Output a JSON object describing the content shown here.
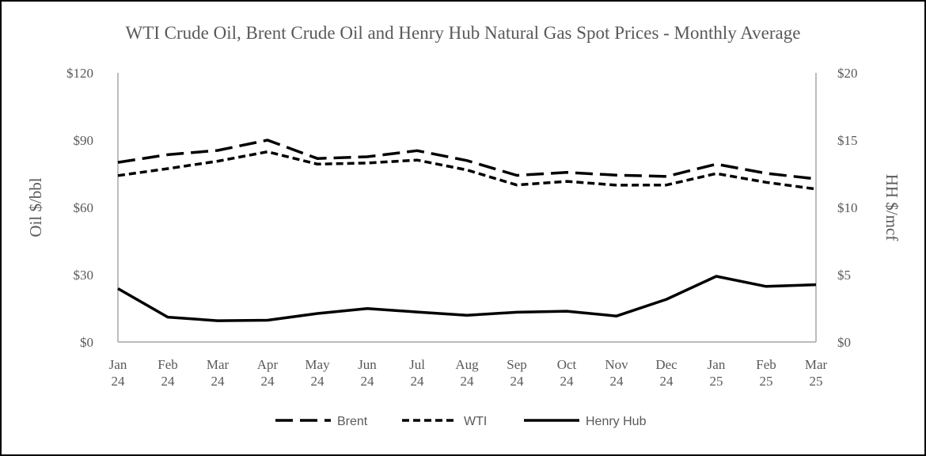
{
  "chart_data": {
    "type": "line",
    "title": "WTI Crude Oil, Brent Crude Oil and Henry Hub Natural Gas Spot Prices - Monthly Average",
    "ylabel_left": "Oil $/bbl",
    "ylabel_right": "HH $/mcf",
    "ylim_left": [
      0,
      120
    ],
    "ylim_right": [
      0,
      20
    ],
    "yticks_left": [
      "$120",
      "$90",
      "$60",
      "$30",
      "$0"
    ],
    "yticks_left_values": [
      120,
      90,
      60,
      30,
      0
    ],
    "yticks_right": [
      "$20",
      "$15",
      "$10",
      "$5",
      "$0"
    ],
    "yticks_right_values": [
      20,
      15,
      10,
      5,
      0
    ],
    "categories": [
      {
        "month": "Jan",
        "year": "24"
      },
      {
        "month": "Feb",
        "year": "24"
      },
      {
        "month": "Mar",
        "year": "24"
      },
      {
        "month": "Apr",
        "year": "24"
      },
      {
        "month": "May",
        "year": "24"
      },
      {
        "month": "Jun",
        "year": "24"
      },
      {
        "month": "Jul",
        "year": "24"
      },
      {
        "month": "Aug",
        "year": "24"
      },
      {
        "month": "Sep",
        "year": "24"
      },
      {
        "month": "Oct",
        "year": "24"
      },
      {
        "month": "Nov",
        "year": "24"
      },
      {
        "month": "Dec",
        "year": "24"
      },
      {
        "month": "Jan",
        "year": "25"
      },
      {
        "month": "Feb",
        "year": "25"
      },
      {
        "month": "Mar",
        "year": "25"
      }
    ],
    "series": [
      {
        "name": "Brent",
        "axis": "left",
        "style": "long-dash",
        "color": "#000000",
        "values": [
          80.1,
          83.5,
          85.4,
          90.0,
          81.8,
          82.6,
          85.3,
          80.9,
          74.3,
          75.6,
          74.4,
          73.8,
          79.3,
          75.2,
          72.7
        ]
      },
      {
        "name": "WTI",
        "axis": "left",
        "style": "short-dash",
        "color": "#000000",
        "values": [
          74.2,
          77.3,
          80.6,
          84.8,
          79.3,
          79.8,
          81.1,
          76.7,
          70.0,
          71.6,
          69.9,
          70.0,
          75.1,
          71.2,
          68.2
        ]
      },
      {
        "name": "Henry Hub",
        "axis": "right",
        "style": "solid",
        "color": "#000000",
        "values": [
          3.97,
          1.85,
          1.58,
          1.62,
          2.12,
          2.48,
          2.23,
          1.99,
          2.21,
          2.29,
          1.93,
          3.17,
          4.88,
          4.13,
          4.26
        ]
      }
    ],
    "legend_position": "bottom",
    "grid": false
  }
}
